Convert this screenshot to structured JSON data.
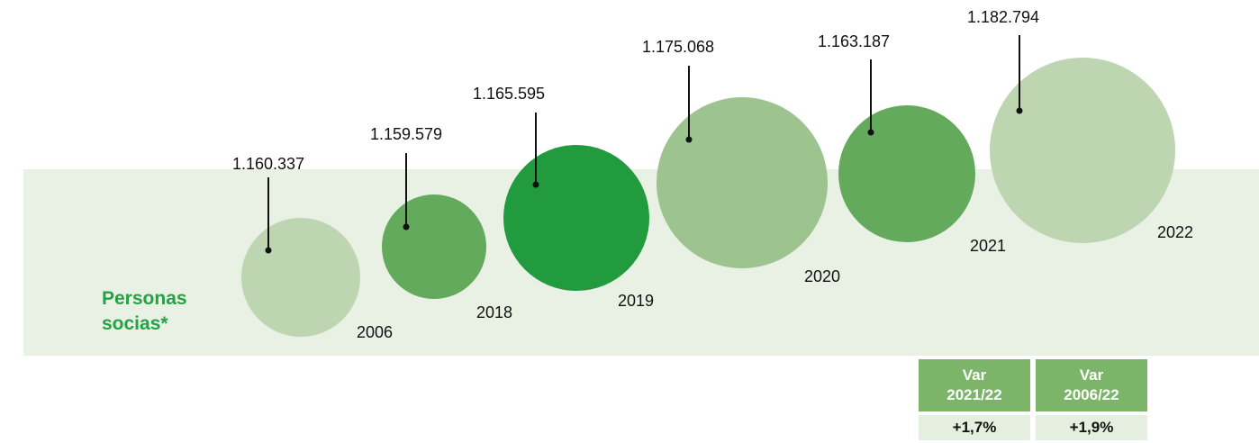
{
  "chart_title": "Personas socias*",
  "chart_data": {
    "type": "bubble",
    "title": "Personas socias*",
    "x_labels": [
      "2006",
      "2018",
      "2019",
      "2020",
      "2021",
      "2022"
    ],
    "values": [
      1160337,
      1159579,
      1165595,
      1175068,
      1163187,
      1182794
    ],
    "value_labels": [
      "1.160.337",
      "1.159.579",
      "1.165.595",
      "1.175.068",
      "1.163.187",
      "1.182.794"
    ],
    "colors": [
      "#bed5b2",
      "#64aa5c",
      "#229b3f",
      "#9dc38e",
      "#64aa5c",
      "#bed5b2"
    ],
    "band_color": "#e9f1e5"
  },
  "variation_table": {
    "headers": [
      {
        "line1": "Var",
        "line2": "2021/22"
      },
      {
        "line1": "Var",
        "line2": "2006/22"
      }
    ],
    "values": [
      "+1,7%",
      "+1,9%"
    ]
  }
}
